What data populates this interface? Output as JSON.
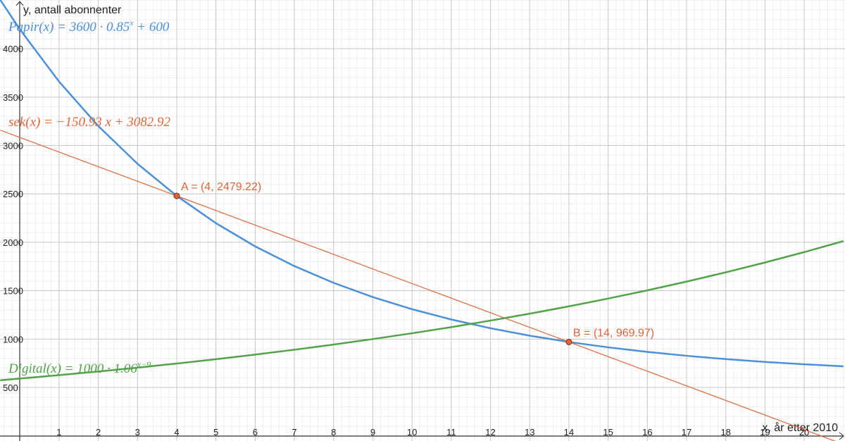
{
  "chart_data": {
    "type": "line",
    "x_label": "x, år etter 2010",
    "y_label": "y, antall abonnenter",
    "x": [
      -0.5,
      0,
      1,
      2,
      3,
      4,
      5,
      6,
      7,
      8,
      9,
      10,
      11,
      12,
      13,
      14,
      15,
      16,
      17,
      18,
      19,
      20,
      21
    ],
    "series": [
      {
        "name": "Papir",
        "label": [
          "Papir(x) = 3600 · 0.85",
          "x",
          " + 600"
        ],
        "color": "#4a90d9",
        "values": [
          4504.7,
          4200,
          3660,
          3201,
          2810.85,
          2479.22,
          2197.34,
          1957.74,
          1754.08,
          1580.97,
          1433.82,
          1308.75,
          1202.44,
          1112.07,
          1035.26,
          969.97,
          914.48,
          867.3,
          827.21,
          793.13,
          764.16,
          739.53,
          718.6
        ]
      },
      {
        "name": "sek",
        "label": [
          "sek(x) = −150.93 x + 3082.92"
        ],
        "color": "#e0643a",
        "values": [
          3158.39,
          3082.92,
          2931.99,
          2781.06,
          2630.13,
          2479.2,
          2328.27,
          2177.34,
          2026.41,
          1875.48,
          1724.55,
          1573.62,
          1422.69,
          1271.76,
          1120.83,
          969.9,
          818.97,
          668.04,
          517.11,
          366.18,
          215.25,
          64.32,
          -86.61
        ]
      },
      {
        "name": "Digital",
        "label": [
          "Digital(x) = 1000 · 1.06",
          "x−9"
        ],
        "color": "#52a24a",
        "values": [
          574.9,
          591.9,
          627.41,
          665.06,
          704.96,
          747.26,
          792.09,
          839.62,
          890,
          943.4,
          1000,
          1060,
          1123.6,
          1191.02,
          1262.48,
          1338.23,
          1418.52,
          1503.63,
          1593.85,
          1689.48,
          1790.85,
          1898.3,
          2012.2
        ]
      }
    ],
    "points": [
      {
        "label": "A = (4, 2479.22)",
        "x": 4,
        "y": 2479.22,
        "color": "#e0643a"
      },
      {
        "label": "B = (14, 969.97)",
        "x": 14,
        "y": 969.97,
        "color": "#e0643a"
      }
    ],
    "xlim": [
      -0.506,
      21.04
    ],
    "ylim": [
      -53,
      4503
    ],
    "xticks": [
      1,
      2,
      3,
      4,
      5,
      6,
      7,
      8,
      9,
      10,
      11,
      12,
      13,
      14,
      15,
      16,
      17,
      18,
      19,
      20
    ],
    "yticks": [
      500,
      1000,
      1500,
      2000,
      2500,
      3000,
      3500,
      4000
    ],
    "grid": true
  }
}
